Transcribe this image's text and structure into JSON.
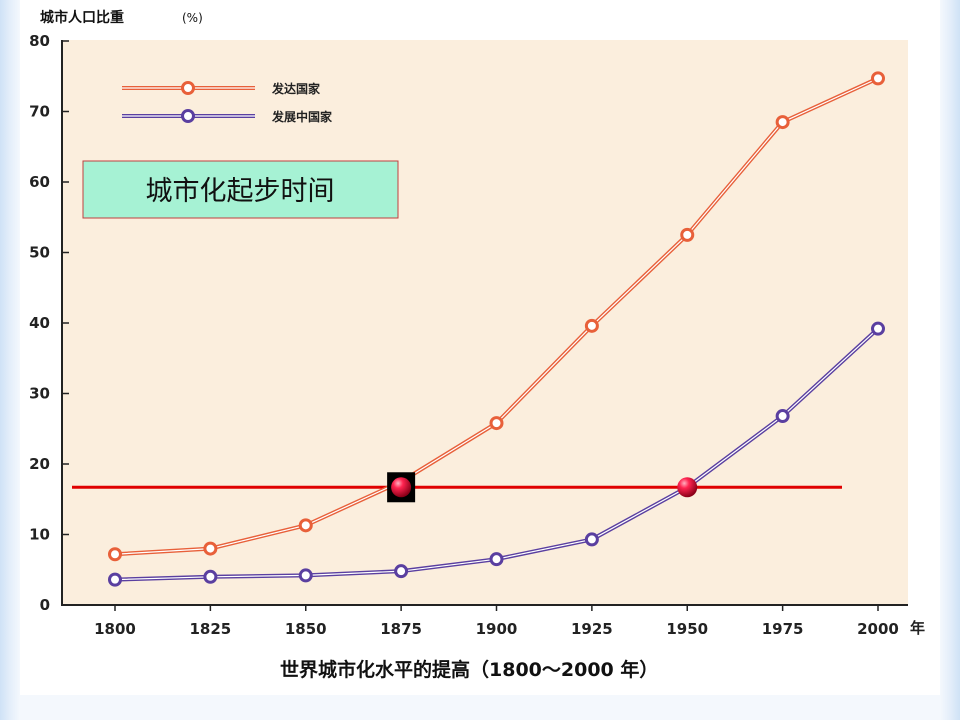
{
  "chart_data": {
    "type": "line",
    "title": "世界城市化水平的提高（1800～2000 年）",
    "ylabel": "城市人口比重",
    "yunit": "(%)",
    "xunit": "年",
    "ylim": [
      0,
      80
    ],
    "yticks": [
      0,
      10,
      20,
      30,
      40,
      50,
      60,
      70,
      80
    ],
    "x": [
      1800,
      1825,
      1850,
      1875,
      1900,
      1925,
      1950,
      1975,
      2000
    ],
    "series": [
      {
        "name": "发达国家",
        "color": "#e8603a",
        "values": [
          7.2,
          8,
          11.3,
          17.5,
          25.8,
          39.6,
          52.5,
          68.5,
          74.7
        ]
      },
      {
        "name": "发展中国家",
        "color": "#5a3fa0",
        "values": [
          3.6,
          4,
          4.2,
          4.8,
          6.5,
          9.3,
          16.7,
          26.8,
          39.2
        ]
      }
    ],
    "grid": false,
    "legend": "top-left",
    "background": "#fbeedd",
    "annotation": {
      "text": "城市化起步时间",
      "box_color": "#a6f2d4",
      "reference_line_value": 16.7,
      "reference_line_color": "#e00000",
      "markers": [
        {
          "x": 1875,
          "y": 16.7
        },
        {
          "x": 1950,
          "y": 16.7
        }
      ]
    }
  }
}
